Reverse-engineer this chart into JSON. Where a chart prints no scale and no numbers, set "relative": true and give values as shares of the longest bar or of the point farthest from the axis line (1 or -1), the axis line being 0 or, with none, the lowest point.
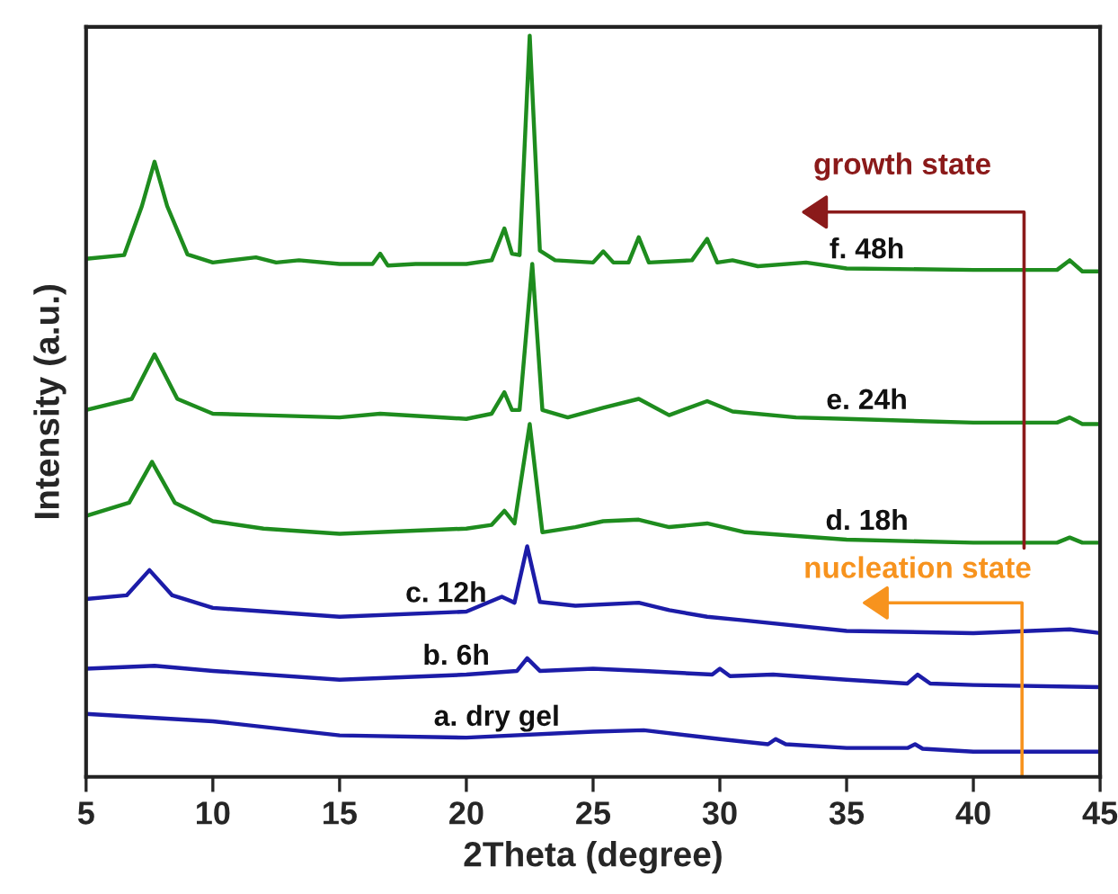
{
  "chart_data": {
    "type": "line",
    "relative": true,
    "xlabel": "2Theta (degree)",
    "ylabel": "Intensity (a.u.)",
    "xlim": [
      5,
      45
    ],
    "xticks": [
      5,
      10,
      15,
      20,
      25,
      30,
      35,
      40,
      45
    ],
    "tick_labels": "x",
    "grid": false,
    "legend": false,
    "marker": "none",
    "line_style": "solid",
    "annotations": [
      "growth state",
      "nucleation state"
    ],
    "series": [
      {
        "name": "a. dry gel",
        "color": "#1c1ca8",
        "x": [
          5,
          10,
          15,
          20,
          25,
          27,
          30,
          31.9,
          32.2,
          32.6,
          35,
          37.4,
          37.7,
          38.0,
          40,
          45
        ],
        "values": [
          0.085,
          0.075,
          0.056,
          0.053,
          0.061,
          0.063,
          0.051,
          0.044,
          0.051,
          0.044,
          0.039,
          0.039,
          0.044,
          0.038,
          0.034,
          0.034
        ]
      },
      {
        "name": "b. 6h",
        "color": "#1c1ca8",
        "x": [
          5,
          7.7,
          10,
          15,
          20,
          22.0,
          22.4,
          22.9,
          25,
          27,
          29.7,
          30.0,
          30.4,
          32.1,
          35,
          37.4,
          37.8,
          38.3,
          40,
          45
        ],
        "values": [
          0.146,
          0.15,
          0.143,
          0.131,
          0.138,
          0.143,
          0.16,
          0.143,
          0.146,
          0.143,
          0.138,
          0.146,
          0.136,
          0.138,
          0.131,
          0.126,
          0.138,
          0.126,
          0.124,
          0.121
        ]
      },
      {
        "name": "c. 12h",
        "color": "#1c1ca8",
        "x": [
          5,
          6.6,
          7.5,
          8.4,
          10,
          15,
          20,
          21.4,
          21.9,
          22.4,
          22.9,
          24.3,
          26.8,
          28,
          29.5,
          31,
          35,
          40,
          43.8,
          45
        ],
        "values": [
          0.24,
          0.245,
          0.279,
          0.245,
          0.228,
          0.216,
          0.223,
          0.243,
          0.235,
          0.311,
          0.236,
          0.231,
          0.235,
          0.225,
          0.216,
          0.211,
          0.197,
          0.194,
          0.199,
          0.194
        ]
      },
      {
        "name": "d. 18h",
        "color": "#1e8c1e",
        "x": [
          5,
          6.7,
          7.6,
          8.5,
          10,
          12,
          15,
          20,
          21.0,
          21.5,
          21.9,
          22.5,
          23.0,
          24.3,
          25.4,
          26.8,
          28,
          29.5,
          31,
          35,
          40,
          43.3,
          43.8,
          44.3,
          45
        ],
        "values": [
          0.352,
          0.37,
          0.425,
          0.37,
          0.345,
          0.335,
          0.328,
          0.335,
          0.34,
          0.359,
          0.342,
          0.476,
          0.33,
          0.337,
          0.345,
          0.347,
          0.337,
          0.342,
          0.33,
          0.32,
          0.316,
          0.316,
          0.323,
          0.316,
          0.316
        ]
      },
      {
        "name": "e. 24h",
        "color": "#1e8c1e",
        "x": [
          5,
          6.8,
          7.7,
          8.6,
          10,
          12,
          15,
          16.6,
          20,
          21.0,
          21.5,
          21.8,
          22.1,
          22.6,
          23.0,
          24,
          25.4,
          26.8,
          28,
          29.5,
          30.5,
          33,
          35,
          40,
          43.3,
          43.8,
          44.3,
          45
        ],
        "values": [
          0.495,
          0.51,
          0.57,
          0.51,
          0.49,
          0.488,
          0.485,
          0.49,
          0.483,
          0.49,
          0.519,
          0.495,
          0.495,
          0.692,
          0.495,
          0.485,
          0.498,
          0.51,
          0.488,
          0.507,
          0.493,
          0.485,
          0.483,
          0.478,
          0.478,
          0.485,
          0.476,
          0.476
        ]
      },
      {
        "name": "f. 48h",
        "color": "#1e8c1e",
        "x": [
          5,
          6.5,
          7.2,
          7.7,
          8.2,
          9.0,
          10,
          11.7,
          12.5,
          13.4,
          15,
          16.3,
          16.6,
          16.9,
          18,
          20,
          21.0,
          21.5,
          21.8,
          22.1,
          22.5,
          22.9,
          23.5,
          25.0,
          25.4,
          25.8,
          26.4,
          26.8,
          27.2,
          28.9,
          29.5,
          29.9,
          30.5,
          31.5,
          33.4,
          35,
          40,
          43.3,
          43.8,
          44.3,
          45
        ],
        "values": [
          0.699,
          0.704,
          0.77,
          0.83,
          0.77,
          0.705,
          0.694,
          0.701,
          0.694,
          0.697,
          0.692,
          0.692,
          0.706,
          0.69,
          0.692,
          0.692,
          0.697,
          0.74,
          0.706,
          0.704,
          1.0,
          0.71,
          0.697,
          0.694,
          0.709,
          0.694,
          0.694,
          0.728,
          0.694,
          0.697,
          0.726,
          0.694,
          0.697,
          0.689,
          0.694,
          0.686,
          0.684,
          0.684,
          0.697,
          0.682,
          0.682
        ]
      }
    ]
  }
}
